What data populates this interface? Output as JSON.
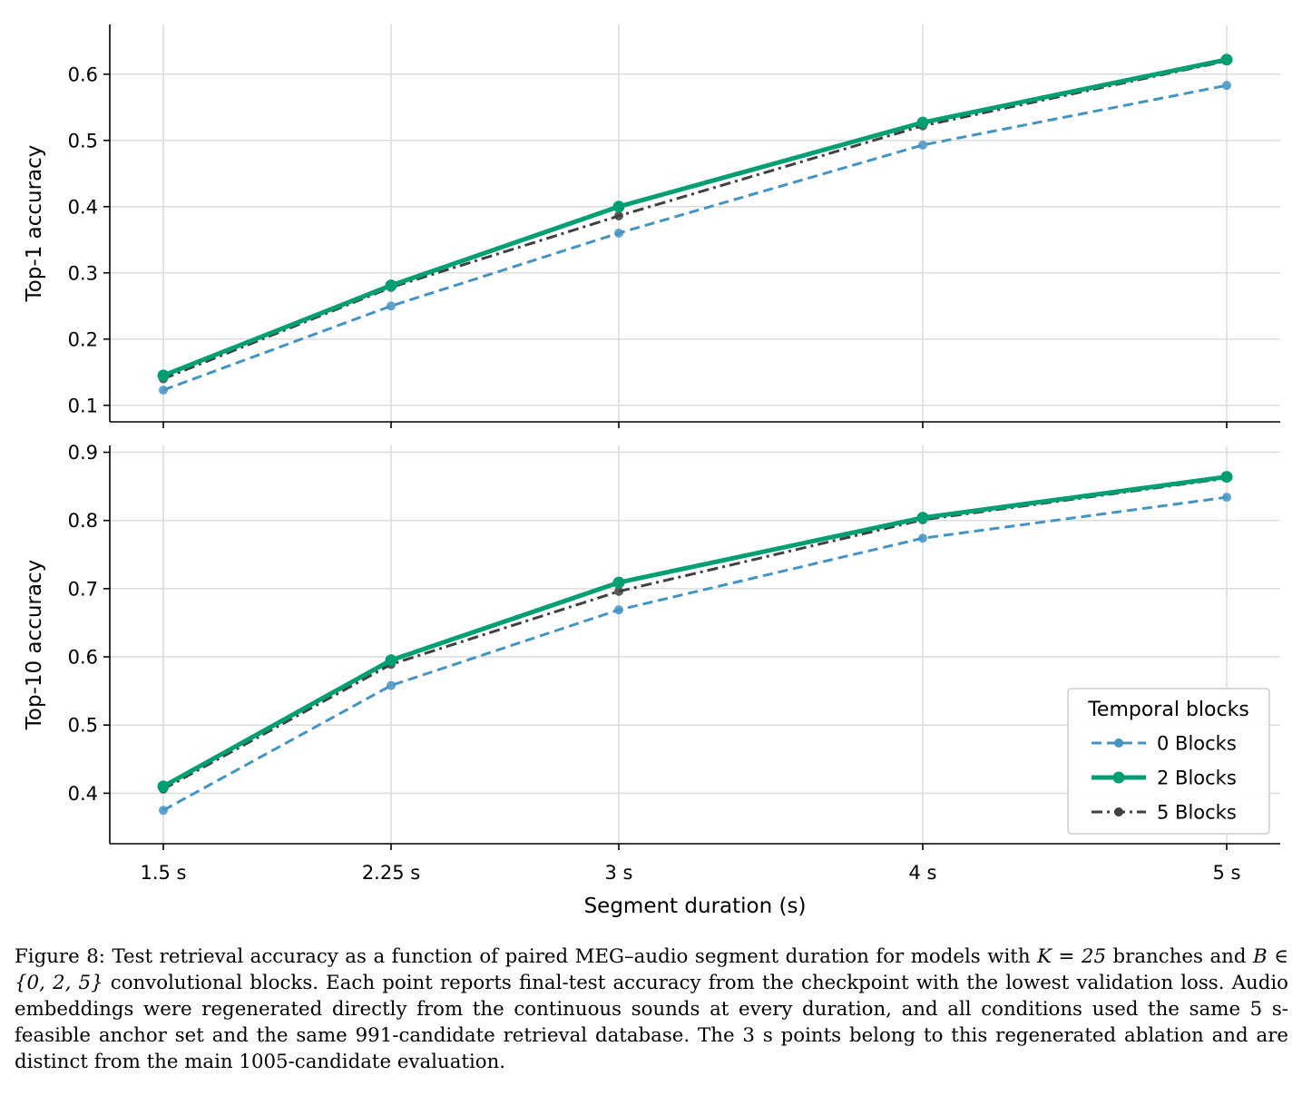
{
  "chart_data": [
    {
      "type": "line",
      "panel": "top",
      "ylabel": "Top-1 accuracy",
      "xlabel": "",
      "x": [
        1.5,
        2.25,
        3,
        4,
        5
      ],
      "xticklabels": [
        "1.5 s",
        "2.25 s",
        "3 s",
        "4 s",
        "5 s"
      ],
      "yticks": [
        0.1,
        0.2,
        0.3,
        0.4,
        0.5,
        0.6
      ],
      "yticklabels": [
        "0.1",
        "0.2",
        "0.3",
        "0.4",
        "0.5",
        "0.6"
      ],
      "ylim": [
        0.075,
        0.675
      ],
      "grid": true,
      "series": [
        {
          "name": "0 Blocks",
          "values": [
            0.123,
            0.25,
            0.36,
            0.493,
            0.583
          ],
          "color": "#4393c3",
          "style": "dashed"
        },
        {
          "name": "5 Blocks",
          "values": [
            0.14,
            0.278,
            0.386,
            0.522,
            0.62
          ],
          "color": "#404040",
          "style": "dashdot"
        },
        {
          "name": "2 Blocks",
          "values": [
            0.145,
            0.281,
            0.4,
            0.527,
            0.622
          ],
          "color": "#009e73",
          "style": "solid"
        }
      ]
    },
    {
      "type": "line",
      "panel": "bottom",
      "ylabel": "Top-10 accuracy",
      "xlabel": "Segment duration (s)",
      "x": [
        1.5,
        2.25,
        3,
        4,
        5
      ],
      "xticklabels": [
        "1.5 s",
        "2.25 s",
        "3 s",
        "4 s",
        "5 s"
      ],
      "yticks": [
        0.4,
        0.5,
        0.6,
        0.7,
        0.8,
        0.9
      ],
      "yticklabels": [
        "0.4",
        "0.5",
        "0.6",
        "0.7",
        "0.8",
        "0.9"
      ],
      "ylim": [
        0.326,
        0.91
      ],
      "grid": true,
      "legend": {
        "title": "Temporal blocks",
        "placement": "lower-right",
        "entries": [
          "0 Blocks",
          "2 Blocks",
          "5 Blocks"
        ]
      },
      "series": [
        {
          "name": "0 Blocks",
          "values": [
            0.375,
            0.558,
            0.669,
            0.774,
            0.834
          ],
          "color": "#4393c3",
          "style": "dashed"
        },
        {
          "name": "5 Blocks",
          "values": [
            0.406,
            0.589,
            0.696,
            0.801,
            0.862
          ],
          "color": "#404040",
          "style": "dashdot"
        },
        {
          "name": "2 Blocks",
          "values": [
            0.41,
            0.595,
            0.709,
            0.804,
            0.864
          ],
          "color": "#009e73",
          "style": "solid"
        }
      ]
    }
  ],
  "caption": {
    "p1": "Figure 8: Test retrieval accuracy as a function of paired MEG–audio segment duration for models with ",
    "m1": "K = 25",
    "p2": " branches and ",
    "m2": "B ∈ {0, 2, 5}",
    "p3": " convolutional blocks. Each point reports final-test accuracy from the checkpoint with the lowest validation loss. Audio embeddings were regenerated directly from the continuous sounds at every duration, and all conditions used the same 5 s-feasible anchor set and the same 991-candidate retrieval database. The 3 s points belong to this regenerated ablation and are distinct from the main 1005-candidate evaluation."
  }
}
